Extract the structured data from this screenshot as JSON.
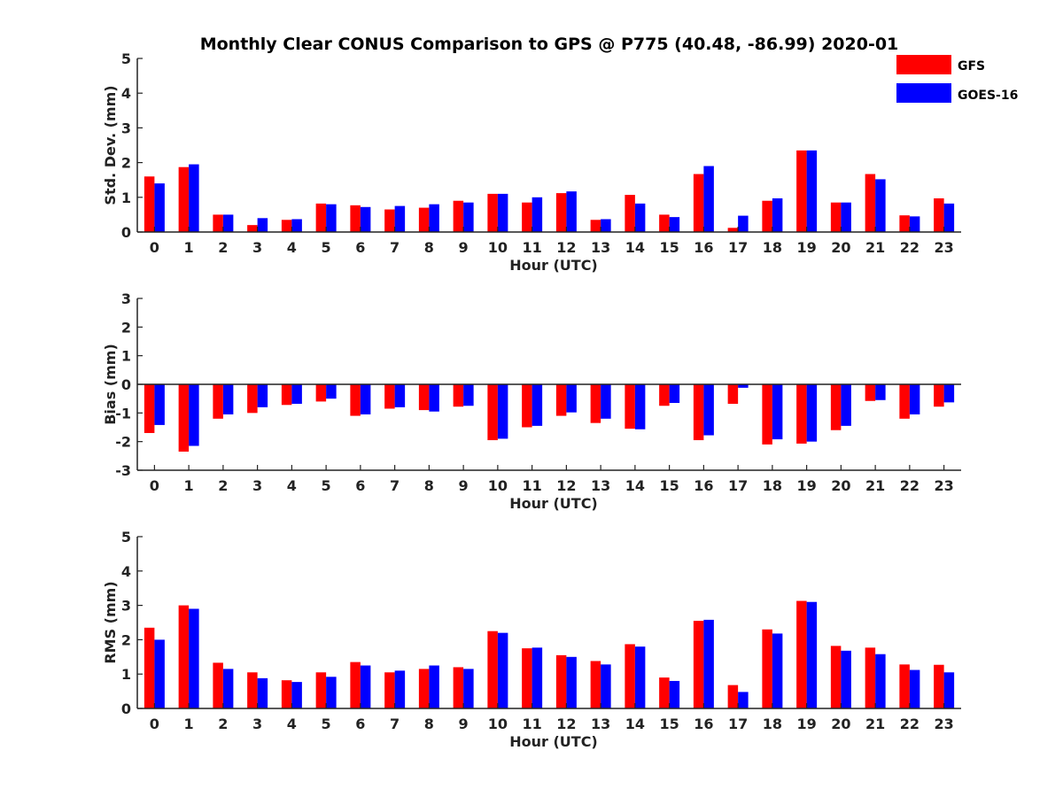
{
  "chart_data": {
    "title": "Monthly Clear CONUS Comparison to GPS @ P775 (40.48, -86.99) 2020-01",
    "legend": {
      "position": "top-right",
      "entries": [
        {
          "label": "GFS",
          "color": "#ff0000"
        },
        {
          "label": "GOES-16",
          "color": "#0000ff"
        }
      ]
    },
    "panels": [
      {
        "type": "bar",
        "xlabel": "Hour (UTC)",
        "ylabel": "Std. Dev. (mm)",
        "ylim": [
          0,
          5
        ],
        "yticks": [
          0,
          1,
          2,
          3,
          4,
          5
        ],
        "categories": [
          0,
          1,
          2,
          3,
          4,
          5,
          6,
          7,
          8,
          9,
          10,
          11,
          12,
          13,
          14,
          15,
          16,
          17,
          18,
          19,
          20,
          21,
          22,
          23
        ],
        "series": [
          {
            "name": "GFS",
            "color": "#ff0000",
            "values": [
              1.6,
              1.87,
              0.5,
              0.2,
              0.35,
              0.82,
              0.77,
              0.65,
              0.7,
              0.9,
              1.1,
              0.85,
              1.12,
              0.35,
              1.07,
              0.5,
              1.67,
              0.12,
              0.9,
              2.35,
              0.85,
              1.67,
              0.48,
              0.97
            ]
          },
          {
            "name": "GOES-16",
            "color": "#0000ff",
            "values": [
              1.4,
              1.95,
              0.5,
              0.4,
              0.37,
              0.8,
              0.72,
              0.75,
              0.8,
              0.85,
              1.1,
              1.0,
              1.17,
              0.37,
              0.82,
              0.43,
              1.9,
              0.47,
              0.97,
              2.35,
              0.85,
              1.52,
              0.45,
              0.82
            ]
          }
        ]
      },
      {
        "type": "bar",
        "xlabel": "Hour (UTC)",
        "ylabel": "Bias (mm)",
        "ylim": [
          -3,
          3
        ],
        "yticks": [
          -3,
          -2,
          -1,
          0,
          1,
          2,
          3
        ],
        "categories": [
          0,
          1,
          2,
          3,
          4,
          5,
          6,
          7,
          8,
          9,
          10,
          11,
          12,
          13,
          14,
          15,
          16,
          17,
          18,
          19,
          20,
          21,
          22,
          23
        ],
        "series": [
          {
            "name": "GFS",
            "color": "#ff0000",
            "values": [
              -1.7,
              -2.35,
              -1.2,
              -1.0,
              -0.72,
              -0.6,
              -1.1,
              -0.85,
              -0.9,
              -0.78,
              -1.95,
              -1.5,
              -1.1,
              -1.35,
              -1.55,
              -0.75,
              -1.95,
              -0.68,
              -2.1,
              -2.07,
              -1.6,
              -0.58,
              -1.2,
              -0.78
            ]
          },
          {
            "name": "GOES-16",
            "color": "#0000ff",
            "values": [
              -1.42,
              -2.15,
              -1.05,
              -0.8,
              -0.68,
              -0.5,
              -1.05,
              -0.8,
              -0.95,
              -0.75,
              -1.9,
              -1.45,
              -0.98,
              -1.2,
              -1.57,
              -0.65,
              -1.78,
              -0.12,
              -1.92,
              -2.0,
              -1.45,
              -0.55,
              -1.05,
              -0.63
            ]
          }
        ]
      },
      {
        "type": "bar",
        "xlabel": "Hour (UTC)",
        "ylabel": "RMS (mm)",
        "ylim": [
          0,
          5
        ],
        "yticks": [
          0,
          1,
          2,
          3,
          4,
          5
        ],
        "categories": [
          0,
          1,
          2,
          3,
          4,
          5,
          6,
          7,
          8,
          9,
          10,
          11,
          12,
          13,
          14,
          15,
          16,
          17,
          18,
          19,
          20,
          21,
          22,
          23
        ],
        "series": [
          {
            "name": "GFS",
            "color": "#ff0000",
            "values": [
              2.35,
              3.0,
              1.33,
              1.05,
              0.82,
              1.05,
              1.35,
              1.05,
              1.15,
              1.2,
              2.25,
              1.75,
              1.55,
              1.38,
              1.87,
              0.9,
              2.55,
              0.68,
              2.3,
              3.13,
              1.82,
              1.77,
              1.28,
              1.27
            ]
          },
          {
            "name": "GOES-16",
            "color": "#0000ff",
            "values": [
              2.0,
              2.9,
              1.15,
              0.88,
              0.77,
              0.92,
              1.25,
              1.1,
              1.25,
              1.15,
              2.2,
              1.77,
              1.5,
              1.28,
              1.8,
              0.8,
              2.58,
              0.48,
              2.18,
              3.1,
              1.68,
              1.58,
              1.12,
              1.05
            ]
          }
        ]
      }
    ]
  }
}
